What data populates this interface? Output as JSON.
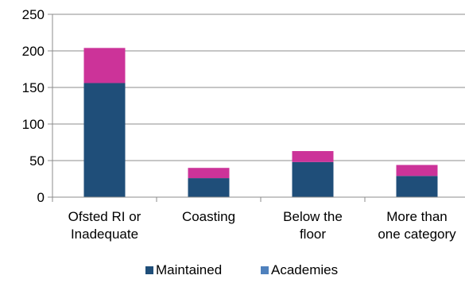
{
  "chart_data": {
    "type": "bar",
    "stacked": true,
    "categories": [
      [
        "Ofsted RI or",
        "Inadequate"
      ],
      [
        "Coasting"
      ],
      [
        "Below the",
        "floor"
      ],
      [
        "More than",
        "one category"
      ]
    ],
    "series": [
      {
        "name": "Maintained",
        "values": [
          156,
          26,
          48,
          29
        ],
        "color": "#1f4e79"
      },
      {
        "name": "Academies",
        "values": [
          48,
          14,
          15,
          15
        ],
        "color": "#cc3399"
      }
    ],
    "legend": [
      {
        "label": "Maintained",
        "color": "#1f4e79"
      },
      {
        "label": "Academies",
        "color": "#4f81bd"
      }
    ],
    "yticks": [
      "0",
      "50",
      "100",
      "150",
      "200",
      "250"
    ],
    "ylim": [
      0,
      250
    ],
    "grid": true,
    "legend_position": "bottom"
  }
}
